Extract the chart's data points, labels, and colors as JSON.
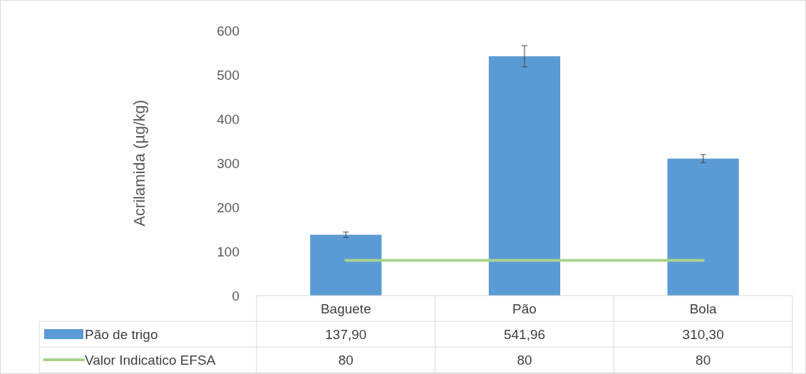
{
  "chart_data": {
    "type": "bar",
    "ylabel": "Acrilamida (µg/kg)",
    "categories": [
      "Baguete",
      "Pão",
      "Bola"
    ],
    "ylim": [
      0,
      600
    ],
    "yticks": [
      0,
      100,
      200,
      300,
      400,
      500,
      600
    ],
    "data_labels": true,
    "legend": "bottom",
    "series": [
      {
        "name": "Pão de trigo",
        "color": "#5b9bd5",
        "values": [
          137.9,
          541.96,
          310.3
        ],
        "value_labels": [
          "137,90",
          "541,96",
          "310,30"
        ],
        "errors": [
          6,
          24,
          9
        ]
      },
      {
        "name": "Valor Indicatico EFSA",
        "type": "line",
        "color": "#a9d18e",
        "values": [
          80,
          80,
          80
        ],
        "value_labels": [
          "80",
          "80",
          "80"
        ]
      }
    ]
  }
}
